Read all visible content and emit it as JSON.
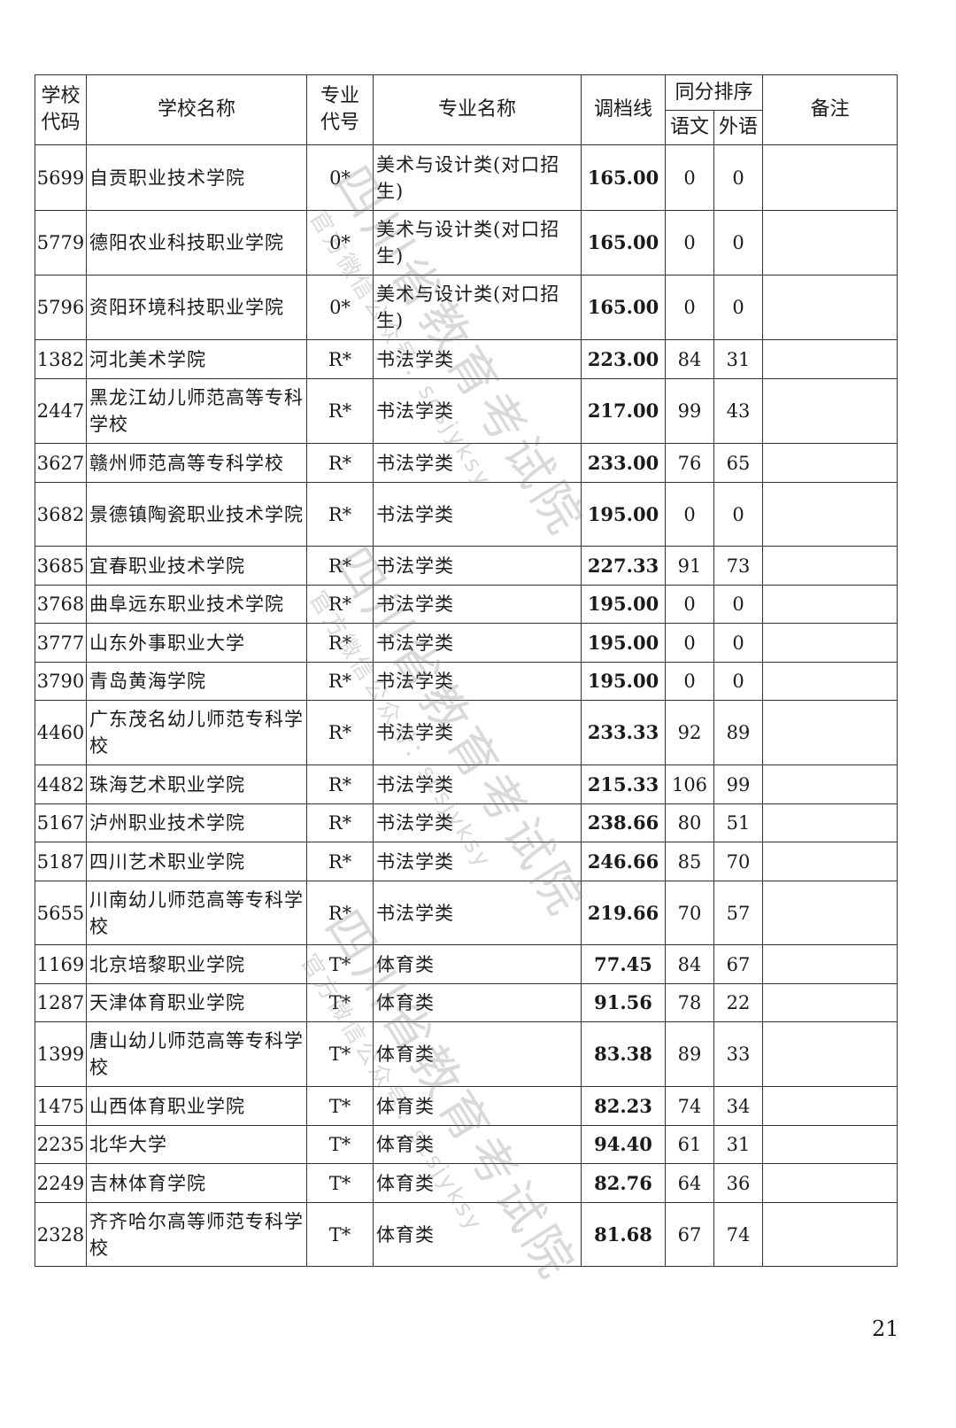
{
  "header": {
    "school_code": "学校代码",
    "school_name": "学校名称",
    "major_code": "专业代号",
    "major_name": "专业名称",
    "line": "调档线",
    "tie_order": "同分排序",
    "chinese": "语文",
    "foreign": "外语",
    "remark": "备注"
  },
  "rows": [
    {
      "code": "5699",
      "school": "自贡职业技术学院",
      "major_code": "0*",
      "major": "美术与设计类(对口招生)",
      "line": "165.00",
      "chinese": "0",
      "foreign": "0",
      "remark": ""
    },
    {
      "code": "5779",
      "school": "德阳农业科技职业学院",
      "major_code": "0*",
      "major": "美术与设计类(对口招生)",
      "line": "165.00",
      "chinese": "0",
      "foreign": "0",
      "remark": ""
    },
    {
      "code": "5796",
      "school": "资阳环境科技职业学院",
      "major_code": "0*",
      "major": "美术与设计类(对口招生)",
      "line": "165.00",
      "chinese": "0",
      "foreign": "0",
      "remark": ""
    },
    {
      "code": "1382",
      "school": "河北美术学院",
      "major_code": "R*",
      "major": "书法学类",
      "line": "223.00",
      "chinese": "84",
      "foreign": "31",
      "remark": ""
    },
    {
      "code": "2447",
      "school": "黑龙江幼儿师范高等专科学校",
      "major_code": "R*",
      "major": "书法学类",
      "line": "217.00",
      "chinese": "99",
      "foreign": "43",
      "remark": ""
    },
    {
      "code": "3627",
      "school": "赣州师范高等专科学校",
      "major_code": "R*",
      "major": "书法学类",
      "line": "233.00",
      "chinese": "76",
      "foreign": "65",
      "remark": ""
    },
    {
      "code": "3682",
      "school": "景德镇陶瓷职业技术学院",
      "major_code": "R*",
      "major": "书法学类",
      "line": "195.00",
      "chinese": "0",
      "foreign": "0",
      "remark": ""
    },
    {
      "code": "3685",
      "school": "宜春职业技术学院",
      "major_code": "R*",
      "major": "书法学类",
      "line": "227.33",
      "chinese": "91",
      "foreign": "73",
      "remark": ""
    },
    {
      "code": "3768",
      "school": "曲阜远东职业技术学院",
      "major_code": "R*",
      "major": "书法学类",
      "line": "195.00",
      "chinese": "0",
      "foreign": "0",
      "remark": ""
    },
    {
      "code": "3777",
      "school": "山东外事职业大学",
      "major_code": "R*",
      "major": "书法学类",
      "line": "195.00",
      "chinese": "0",
      "foreign": "0",
      "remark": ""
    },
    {
      "code": "3790",
      "school": "青岛黄海学院",
      "major_code": "R*",
      "major": "书法学类",
      "line": "195.00",
      "chinese": "0",
      "foreign": "0",
      "remark": ""
    },
    {
      "code": "4460",
      "school": "广东茂名幼儿师范专科学校",
      "major_code": "R*",
      "major": "书法学类",
      "line": "233.33",
      "chinese": "92",
      "foreign": "89",
      "remark": ""
    },
    {
      "code": "4482",
      "school": "珠海艺术职业学院",
      "major_code": "R*",
      "major": "书法学类",
      "line": "215.33",
      "chinese": "106",
      "foreign": "99",
      "remark": ""
    },
    {
      "code": "5167",
      "school": "泸州职业技术学院",
      "major_code": "R*",
      "major": "书法学类",
      "line": "238.66",
      "chinese": "80",
      "foreign": "51",
      "remark": ""
    },
    {
      "code": "5187",
      "school": "四川艺术职业学院",
      "major_code": "R*",
      "major": "书法学类",
      "line": "246.66",
      "chinese": "85",
      "foreign": "70",
      "remark": ""
    },
    {
      "code": "5655",
      "school": "川南幼儿师范高等专科学校",
      "major_code": "R*",
      "major": "书法学类",
      "line": "219.66",
      "chinese": "70",
      "foreign": "57",
      "remark": ""
    },
    {
      "code": "1169",
      "school": "北京培黎职业学院",
      "major_code": "T*",
      "major": "体育类",
      "line": "77.45",
      "chinese": "84",
      "foreign": "67",
      "remark": ""
    },
    {
      "code": "1287",
      "school": "天津体育职业学院",
      "major_code": "T*",
      "major": "体育类",
      "line": "91.56",
      "chinese": "78",
      "foreign": "22",
      "remark": ""
    },
    {
      "code": "1399",
      "school": "唐山幼儿师范高等专科学校",
      "major_code": "T*",
      "major": "体育类",
      "line": "83.38",
      "chinese": "89",
      "foreign": "33",
      "remark": ""
    },
    {
      "code": "1475",
      "school": "山西体育职业学院",
      "major_code": "T*",
      "major": "体育类",
      "line": "82.23",
      "chinese": "74",
      "foreign": "34",
      "remark": ""
    },
    {
      "code": "2235",
      "school": "北华大学",
      "major_code": "T*",
      "major": "体育类",
      "line": "94.40",
      "chinese": "61",
      "foreign": "31",
      "remark": ""
    },
    {
      "code": "2249",
      "school": "吉林体育学院",
      "major_code": "T*",
      "major": "体育类",
      "line": "82.76",
      "chinese": "64",
      "foreign": "36",
      "remark": ""
    },
    {
      "code": "2328",
      "school": "齐齐哈尔高等师范专科学校",
      "major_code": "T*",
      "major": "体育类",
      "line": "81.68",
      "chinese": "67",
      "foreign": "74",
      "remark": ""
    }
  ],
  "watermark": {
    "org": "四川省教育考试院",
    "sub": "官方微信公众号：scsjyksy"
  },
  "page_number": "21"
}
